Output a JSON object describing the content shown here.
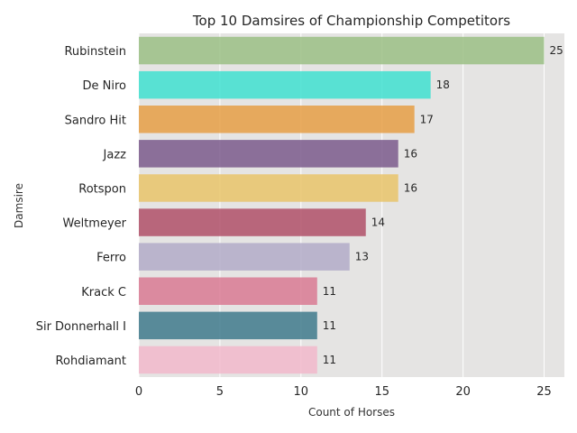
{
  "chart_data": {
    "type": "bar",
    "orientation": "horizontal",
    "title": "Top 10 Damsires of Championship Competitors",
    "xlabel": "Count of Horses",
    "ylabel": "Damsire",
    "categories": [
      "Rubinstein",
      "De Niro",
      "Sandro Hit",
      "Jazz",
      "Rotspon",
      "Weltmeyer",
      "Ferro",
      "Krack C",
      "Sir Donnerhall I",
      "Rohdiamant"
    ],
    "values": [
      25,
      18,
      17,
      16,
      16,
      14,
      13,
      11,
      11,
      11
    ],
    "colors": [
      "#9bbf85",
      "#40e0d0",
      "#e69f45",
      "#7b5a8c",
      "#e9c46a",
      "#b05068",
      "#b3acc8",
      "#d97a93",
      "#3f7a8c",
      "#f2b8cb"
    ],
    "xlim": [
      0,
      26.25
    ],
    "xticks": [
      0,
      5,
      10,
      15,
      20,
      25
    ],
    "grid": true,
    "legend": "none",
    "data_labels": true
  }
}
